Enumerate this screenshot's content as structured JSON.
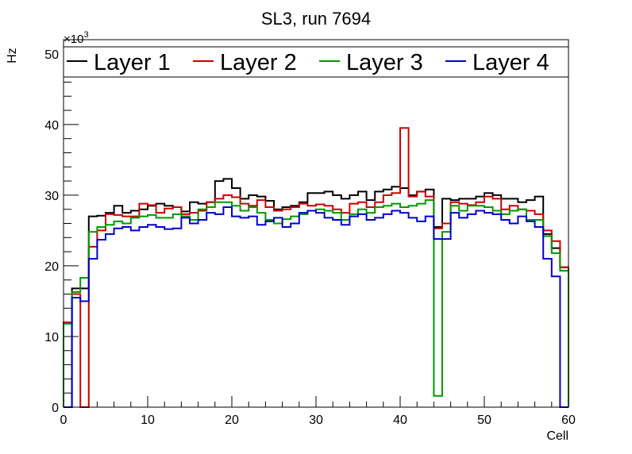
{
  "chart_data": {
    "type": "step-histogram",
    "title": "SL3, run 7694",
    "xlabel": "Cell",
    "ylabel": "Hz",
    "y_multiplier_label": "×10",
    "y_multiplier_exp": "3",
    "xlim": [
      0,
      60
    ],
    "ylim": [
      0,
      52
    ],
    "x_ticks": [
      0,
      10,
      20,
      30,
      40,
      50,
      60
    ],
    "y_ticks": [
      0,
      10,
      20,
      30,
      40,
      50
    ],
    "bin_width": 1,
    "legend_position": "top",
    "series": [
      {
        "name": "Layer 1",
        "color": "#000000",
        "values": [
          0,
          16.8,
          16.8,
          27.0,
          27.1,
          27.5,
          28.5,
          27.5,
          27.8,
          28.0,
          28.5,
          28.8,
          28.5,
          28.3,
          27.7,
          29.0,
          28.8,
          29.0,
          32.0,
          32.3,
          31.0,
          29.5,
          30.0,
          29.8,
          29.2,
          28.0,
          28.3,
          28.5,
          29.0,
          30.3,
          30.3,
          30.5,
          30.0,
          29.5,
          30.0,
          30.5,
          29.3,
          30.5,
          30.8,
          31.2,
          31.0,
          30.0,
          30.5,
          30.8,
          25.5,
          29.5,
          29.3,
          29.5,
          29.5,
          29.8,
          30.3,
          30.0,
          29.5,
          29.5,
          29.0,
          29.3,
          29.8,
          24.5,
          22.5,
          19.8
        ]
      },
      {
        "name": "Layer 2",
        "color": "#cc0000",
        "values": [
          12.0,
          16.0,
          0,
          22.7,
          25.0,
          27.3,
          27.2,
          27.0,
          27.0,
          28.8,
          28.6,
          27.5,
          28.1,
          28.3,
          27.3,
          27.5,
          27.8,
          29.0,
          29.5,
          30.0,
          29.7,
          28.8,
          28.5,
          29.3,
          28.3,
          27.8,
          28.0,
          28.3,
          28.8,
          28.5,
          28.7,
          28.5,
          28.0,
          27.5,
          28.8,
          29.0,
          28.3,
          29.0,
          30.0,
          30.3,
          39.5,
          29.8,
          30.5,
          29.8,
          25.3,
          26.0,
          29.0,
          28.8,
          28.6,
          29.0,
          29.8,
          29.5,
          28.0,
          28.5,
          28.0,
          27.8,
          27.3,
          25.0,
          23.5,
          19.8
        ]
      },
      {
        "name": "Layer 3",
        "color": "#009900",
        "values": [
          11.8,
          16.3,
          18.3,
          24.8,
          25.5,
          25.8,
          26.3,
          26.0,
          26.8,
          27.0,
          27.2,
          26.8,
          26.8,
          27.3,
          27.0,
          26.5,
          28.0,
          28.3,
          29.0,
          29.0,
          28.5,
          27.8,
          28.3,
          27.5,
          26.5,
          26.0,
          26.6,
          27.0,
          27.3,
          27.8,
          28.0,
          27.8,
          27.5,
          26.5,
          27.3,
          28.0,
          27.5,
          28.3,
          28.5,
          28.8,
          28.3,
          28.5,
          28.8,
          29.3,
          1.6,
          24.8,
          28.5,
          27.8,
          28.5,
          28.5,
          28.3,
          27.8,
          27.3,
          27.8,
          28.0,
          26.5,
          26.5,
          24.2,
          21.8,
          19.3
        ]
      },
      {
        "name": "Layer 4",
        "color": "#0000cc",
        "values": [
          0,
          15.5,
          15.0,
          21.0,
          23.7,
          24.5,
          25.3,
          25.5,
          25.0,
          25.5,
          25.8,
          25.5,
          25.2,
          25.3,
          26.8,
          26.0,
          26.5,
          27.5,
          27.3,
          28.3,
          27.0,
          26.8,
          27.0,
          25.8,
          26.3,
          26.8,
          25.5,
          26.0,
          27.5,
          27.8,
          27.5,
          26.8,
          26.5,
          25.8,
          27.0,
          27.3,
          26.5,
          26.8,
          27.3,
          27.8,
          27.5,
          26.8,
          26.3,
          27.0,
          23.8,
          23.8,
          27.5,
          26.8,
          27.3,
          27.8,
          27.5,
          27.3,
          26.5,
          26.0,
          27.0,
          26.3,
          25.5,
          21.0,
          18.5,
          0
        ]
      }
    ]
  }
}
